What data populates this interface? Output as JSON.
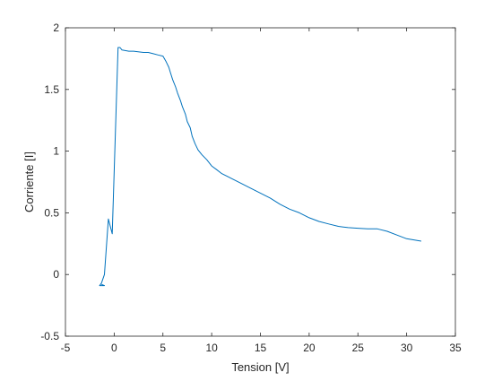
{
  "chart_data": {
    "type": "line",
    "title": "",
    "xlabel": "Tension [V]",
    "ylabel": "Corriente [I]",
    "xlim": [
      -5,
      35
    ],
    "ylim": [
      -0.5,
      2
    ],
    "xticks": [
      "-5",
      "0",
      "5",
      "10",
      "15",
      "20",
      "25",
      "30",
      "35"
    ],
    "yticks": [
      "-0.5",
      "0",
      "0.5",
      "1",
      "1.5",
      "2"
    ],
    "grid": false,
    "legend": "none",
    "series": [
      {
        "name": "",
        "color": "#0072BD",
        "x": [
          -1.3,
          -1.0,
          -1.5,
          -1.3,
          -1.0,
          -0.6,
          -0.2,
          0.4,
          0.6,
          0.8,
          1.5,
          2.0,
          3.0,
          3.5,
          4.0,
          4.5,
          5.0,
          5.3,
          5.6,
          5.8,
          6.0,
          6.3,
          6.5,
          6.8,
          7.0,
          7.3,
          7.5,
          7.8,
          8.0,
          8.3,
          8.6,
          9.0,
          9.5,
          10.0,
          10.5,
          11.0,
          12.0,
          13.0,
          14.0,
          15.0,
          16.0,
          17.0,
          18.0,
          19.0,
          20.0,
          21.0,
          22.0,
          23.0,
          24.0,
          25.0,
          26.0,
          27.0,
          28.0,
          29.0,
          30.0,
          31.5
        ],
        "y": [
          -0.08,
          -0.09,
          -0.09,
          -0.07,
          0.0,
          0.45,
          0.33,
          1.84,
          1.84,
          1.82,
          1.81,
          1.81,
          1.8,
          1.8,
          1.79,
          1.78,
          1.77,
          1.73,
          1.68,
          1.63,
          1.58,
          1.52,
          1.47,
          1.41,
          1.36,
          1.3,
          1.24,
          1.19,
          1.12,
          1.06,
          1.01,
          0.97,
          0.93,
          0.88,
          0.85,
          0.82,
          0.78,
          0.74,
          0.7,
          0.66,
          0.62,
          0.57,
          0.53,
          0.5,
          0.46,
          0.43,
          0.41,
          0.39,
          0.38,
          0.375,
          0.37,
          0.37,
          0.35,
          0.32,
          0.29,
          0.27
        ]
      }
    ]
  }
}
